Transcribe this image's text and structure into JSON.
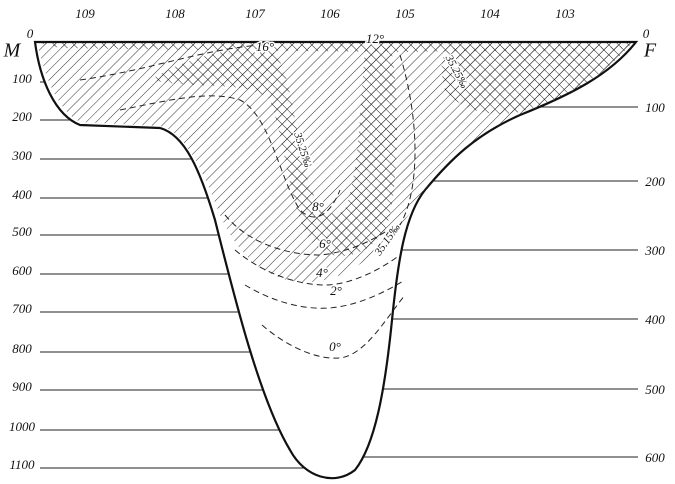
{
  "stations": [
    "109",
    "108",
    "107",
    "106",
    "105",
    "104",
    "103"
  ],
  "left_axis": {
    "unit": "M",
    "ticks": [
      "0",
      "100",
      "200",
      "300",
      "400",
      "500",
      "600",
      "700",
      "800",
      "900",
      "1000",
      "1100"
    ]
  },
  "right_axis": {
    "unit": "F",
    "ticks": [
      "0",
      "100",
      "200",
      "300",
      "400",
      "500",
      "600"
    ]
  },
  "isotherms": [
    "16°",
    "12°",
    "8°",
    "6°",
    "4°",
    "2°",
    "0°"
  ],
  "salinity_labels": [
    "35.25‰",
    "35.25‰",
    "35.15‰"
  ]
}
